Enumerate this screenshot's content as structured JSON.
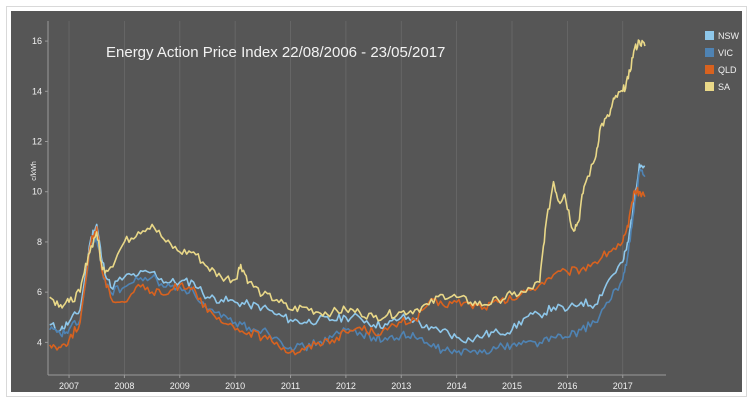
{
  "chart_data": {
    "type": "line",
    "title": "Energy Action Price Index 22/08/2006 - 23/05/2017",
    "ylabel": "c/kWh",
    "xlabel": "",
    "xlim": [
      2006.62,
      2017.42
    ],
    "ylim": [
      2.7,
      16.8
    ],
    "y_ticks": [
      4,
      6,
      8,
      10,
      12,
      14,
      16
    ],
    "x_tick_labels": [
      "2007",
      "2008",
      "2009",
      "2010",
      "2011",
      "2012",
      "2013",
      "2014",
      "2015",
      "2016",
      "2017"
    ],
    "x_tick_positions": [
      2007.0,
      2008.0,
      2009.0,
      2010.0,
      2011.0,
      2012.0,
      2013.0,
      2014.0,
      2015.0,
      2016.0,
      2017.0
    ],
    "grid": "vertical",
    "legend_position": "top-right",
    "series": [
      {
        "name": "NSW",
        "color": "#8ec7ea",
        "x": [
          2006.65,
          2006.85,
          2007.0,
          2007.2,
          2007.4,
          2007.5,
          2007.6,
          2007.75,
          2008.0,
          2008.25,
          2008.5,
          2008.75,
          2009.0,
          2009.25,
          2009.5,
          2009.75,
          2010.0,
          2010.25,
          2010.5,
          2010.75,
          2011.0,
          2011.25,
          2011.5,
          2011.75,
          2012.0,
          2012.25,
          2012.5,
          2012.75,
          2013.0,
          2013.25,
          2013.5,
          2013.75,
          2014.0,
          2014.25,
          2014.5,
          2014.75,
          2015.0,
          2015.25,
          2015.5,
          2015.75,
          2016.0,
          2016.25,
          2016.5,
          2016.75,
          2017.0,
          2017.1,
          2017.2,
          2017.3,
          2017.4
        ],
        "y": [
          4.7,
          4.5,
          4.8,
          5.3,
          8.2,
          8.7,
          7.2,
          6.2,
          6.6,
          6.7,
          6.8,
          6.4,
          6.4,
          6.4,
          5.8,
          5.7,
          5.6,
          5.5,
          5.4,
          5.1,
          4.9,
          4.8,
          4.9,
          4.9,
          5.0,
          5.0,
          4.7,
          4.7,
          5.0,
          4.9,
          4.5,
          4.5,
          4.2,
          4.1,
          4.3,
          4.4,
          4.5,
          5.0,
          5.1,
          5.4,
          5.3,
          5.6,
          5.5,
          6.5,
          7.2,
          8.0,
          9.6,
          11.1,
          11.0
        ]
      },
      {
        "name": "VIC",
        "color": "#4f83b3",
        "x": [
          2006.65,
          2006.85,
          2007.0,
          2007.2,
          2007.4,
          2007.5,
          2007.6,
          2007.75,
          2008.0,
          2008.25,
          2008.5,
          2008.75,
          2009.0,
          2009.25,
          2009.5,
          2009.75,
          2010.0,
          2010.25,
          2010.5,
          2010.75,
          2011.0,
          2011.25,
          2011.5,
          2011.75,
          2012.0,
          2012.25,
          2012.5,
          2012.75,
          2013.0,
          2013.25,
          2013.5,
          2013.75,
          2014.0,
          2014.25,
          2014.5,
          2014.75,
          2015.0,
          2015.25,
          2015.5,
          2015.75,
          2016.0,
          2016.25,
          2016.5,
          2016.75,
          2017.0,
          2017.1,
          2017.2,
          2017.3,
          2017.4
        ],
        "y": [
          4.5,
          4.3,
          4.5,
          4.9,
          7.9,
          8.1,
          6.8,
          6.0,
          6.2,
          6.5,
          6.6,
          6.2,
          6.2,
          6.0,
          5.3,
          5.0,
          4.8,
          4.6,
          4.5,
          4.2,
          3.8,
          3.8,
          4.0,
          4.2,
          4.5,
          4.4,
          4.2,
          4.1,
          4.3,
          4.2,
          3.9,
          3.7,
          3.6,
          3.6,
          3.7,
          3.8,
          3.9,
          4.0,
          4.0,
          4.2,
          4.2,
          4.5,
          4.8,
          5.6,
          6.5,
          7.6,
          9.2,
          10.8,
          10.6
        ]
      },
      {
        "name": "QLD",
        "color": "#d8621f",
        "x": [
          2006.65,
          2006.85,
          2007.0,
          2007.2,
          2007.4,
          2007.5,
          2007.6,
          2007.75,
          2008.0,
          2008.25,
          2008.5,
          2008.75,
          2009.0,
          2009.25,
          2009.5,
          2009.75,
          2010.0,
          2010.25,
          2010.5,
          2010.75,
          2011.0,
          2011.25,
          2011.5,
          2011.75,
          2012.0,
          2012.25,
          2012.5,
          2012.75,
          2013.0,
          2013.25,
          2013.5,
          2013.75,
          2014.0,
          2014.25,
          2014.5,
          2014.75,
          2015.0,
          2015.25,
          2015.5,
          2015.75,
          2016.0,
          2016.25,
          2016.5,
          2016.75,
          2017.0,
          2017.1,
          2017.2,
          2017.3,
          2017.4
        ],
        "y": [
          3.9,
          3.8,
          4.1,
          4.8,
          8.0,
          8.6,
          6.8,
          5.8,
          5.6,
          6.3,
          6.0,
          5.9,
          6.3,
          6.2,
          5.2,
          4.8,
          4.5,
          4.4,
          4.2,
          4.0,
          3.6,
          3.7,
          4.0,
          4.1,
          4.4,
          4.6,
          4.4,
          4.5,
          4.8,
          4.9,
          5.6,
          5.5,
          5.6,
          5.5,
          5.4,
          5.6,
          5.7,
          6.0,
          6.3,
          6.7,
          6.8,
          6.9,
          7.2,
          7.6,
          8.0,
          8.6,
          10.0,
          10.0,
          9.8
        ]
      },
      {
        "name": "SA",
        "color": "#e9d888",
        "x": [
          2006.65,
          2006.85,
          2007.0,
          2007.2,
          2007.35,
          2007.5,
          2007.6,
          2007.75,
          2008.0,
          2008.25,
          2008.5,
          2008.75,
          2009.0,
          2009.25,
          2009.5,
          2009.75,
          2010.0,
          2010.1,
          2010.25,
          2010.5,
          2010.75,
          2011.0,
          2011.25,
          2011.5,
          2011.75,
          2012.0,
          2012.25,
          2012.5,
          2012.75,
          2013.0,
          2013.25,
          2013.5,
          2013.75,
          2014.0,
          2014.25,
          2014.5,
          2014.75,
          2015.0,
          2015.25,
          2015.5,
          2015.6,
          2015.75,
          2015.85,
          2015.95,
          2016.1,
          2016.2,
          2016.3,
          2016.5,
          2016.6,
          2016.75,
          2016.85,
          2017.0,
          2017.1,
          2017.2,
          2017.3,
          2017.4
        ],
        "y": [
          5.8,
          5.5,
          5.6,
          6.0,
          7.5,
          8.4,
          6.9,
          7.0,
          8.0,
          8.4,
          8.7,
          8.0,
          7.6,
          7.6,
          7.0,
          6.6,
          6.5,
          7.1,
          6.4,
          5.9,
          5.7,
          5.3,
          5.4,
          5.2,
          5.2,
          5.3,
          5.2,
          5.0,
          5.1,
          5.2,
          5.3,
          5.5,
          5.9,
          5.8,
          5.6,
          5.5,
          5.7,
          5.9,
          6.0,
          6.4,
          8.5,
          10.4,
          9.6,
          9.9,
          8.5,
          8.8,
          10.2,
          11.3,
          12.6,
          13.0,
          13.7,
          14.0,
          14.5,
          15.6,
          16.0,
          15.8
        ]
      }
    ]
  },
  "colors": {
    "background": "#565656",
    "grid": "#6a6a6a",
    "text": "#f0f0f0"
  }
}
